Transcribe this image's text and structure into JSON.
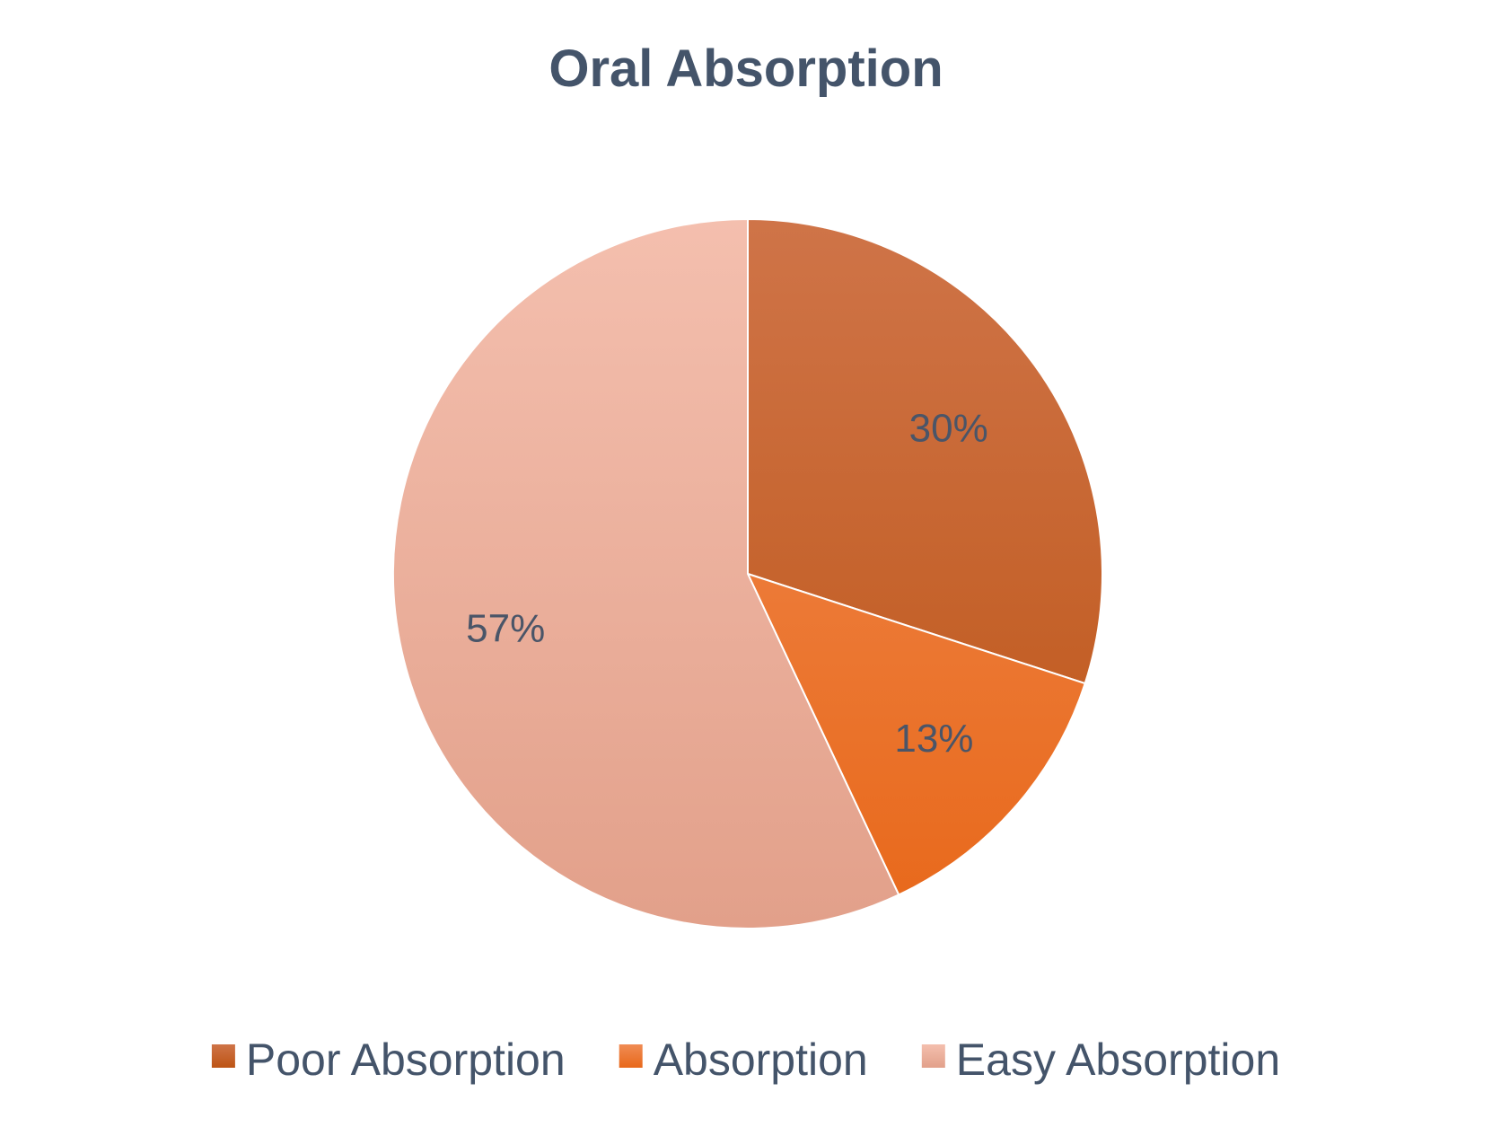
{
  "chart_data": {
    "type": "pie",
    "title": "Oral Absorption",
    "start_angle_deg": 0,
    "direction": "clockwise",
    "legend_position": "bottom",
    "slices": [
      {
        "name": "Poor Absorption",
        "value": 30,
        "label": "30%",
        "color_top": "#cf7448",
        "color_bottom": "#bd5414"
      },
      {
        "name": "Absorption",
        "value": 13,
        "label": "13%",
        "color_top": "#f08c54",
        "color_bottom": "#e8681a"
      },
      {
        "name": "Easy Absorption",
        "value": 57,
        "label": "57%",
        "color_top": "#f4bfae",
        "color_bottom": "#e2a08a"
      }
    ]
  }
}
